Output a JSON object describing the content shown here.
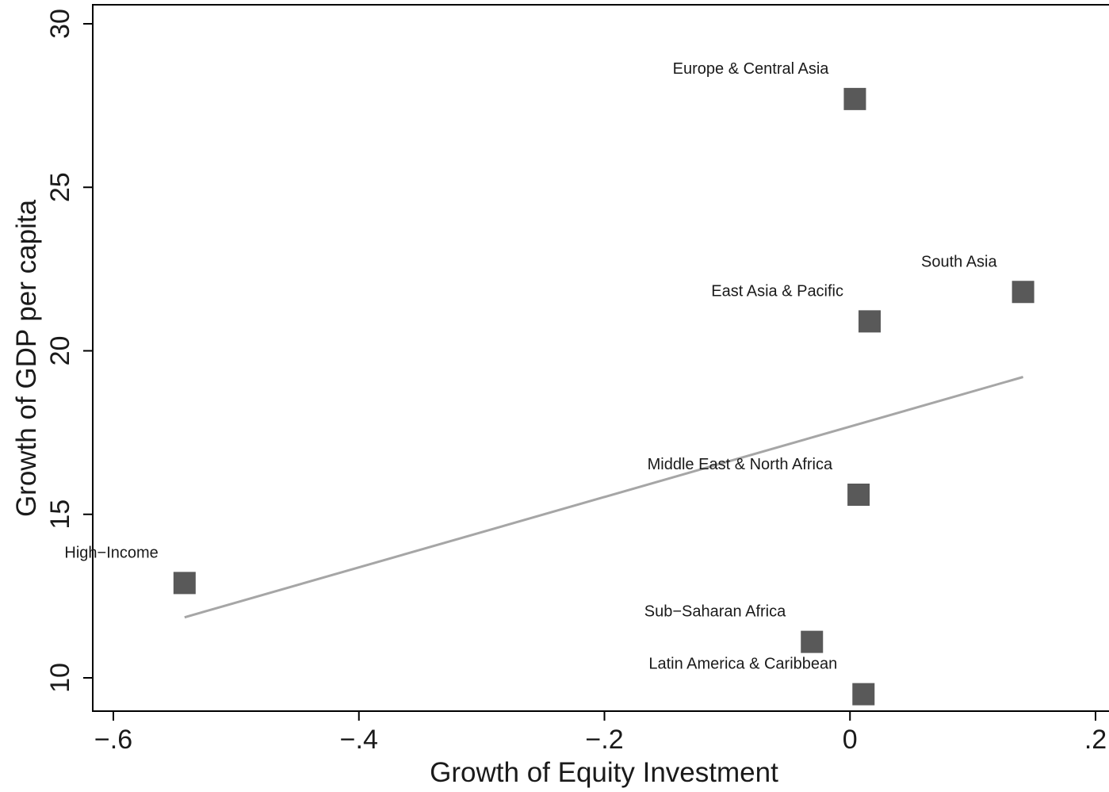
{
  "chart_data": {
    "type": "scatter",
    "xlabel": "Growth of Equity Investment",
    "ylabel": "Growth of GDP per capita",
    "xlim": [
      -0.6,
      0.2
    ],
    "ylim": [
      10,
      30
    ],
    "x_ticks": [
      {
        "value": -0.6,
        "label": "−.6"
      },
      {
        "value": -0.4,
        "label": "−.4"
      },
      {
        "value": -0.2,
        "label": "−.2"
      },
      {
        "value": 0,
        "label": "0"
      },
      {
        "value": 0.2,
        "label": ".2"
      }
    ],
    "y_ticks": [
      {
        "value": 10,
        "label": "10"
      },
      {
        "value": 15,
        "label": "15"
      },
      {
        "value": 20,
        "label": "20"
      },
      {
        "value": 25,
        "label": "25"
      },
      {
        "value": 30,
        "label": "30"
      }
    ],
    "grid": false,
    "marker_color": "#595959",
    "fit_line_color": "#a6a6a6",
    "points": [
      {
        "label": "Europe & Central Asia",
        "x": 0.004,
        "y": 27.7
      },
      {
        "label": "South Asia",
        "x": 0.141,
        "y": 21.8
      },
      {
        "label": "East Asia & Pacific",
        "x": 0.016,
        "y": 20.9
      },
      {
        "label": "Middle East & North Africa",
        "x": 0.007,
        "y": 15.6
      },
      {
        "label": "High−Income",
        "x": -0.542,
        "y": 12.9
      },
      {
        "label": "Sub−Saharan Africa",
        "x": -0.031,
        "y": 11.1
      },
      {
        "label": "Latin America & Caribbean",
        "x": 0.011,
        "y": 9.5
      }
    ],
    "fit_line": {
      "x": [
        -0.542,
        0.141
      ],
      "y": [
        11.85,
        19.2
      ]
    }
  }
}
